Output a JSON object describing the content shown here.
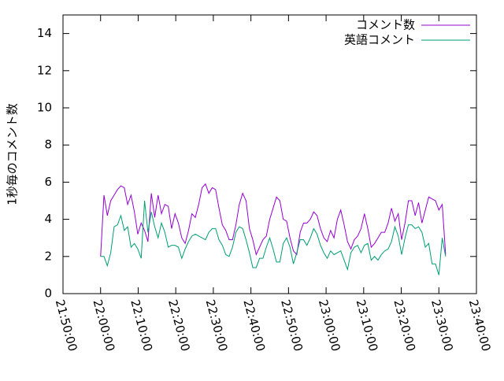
{
  "chart_data": {
    "type": "line",
    "y_label": "1秒毎のコメント数",
    "legend": "top right",
    "grid": false,
    "xlim": [
      "21:50:00",
      "23:40:00"
    ],
    "xticks": [
      "21:50:00",
      "22:00:00",
      "22:10:00",
      "22:20:00",
      "22:30:00",
      "22:40:00",
      "22:50:00",
      "23:00:00",
      "23:10:00",
      "23:20:00",
      "23:30:00",
      "23:40:00"
    ],
    "ylim": [
      0,
      15
    ],
    "yticks": [
      0,
      2,
      4,
      6,
      8,
      10,
      12,
      14
    ],
    "x": [
      "22:00:00",
      "22:00:54",
      "22:01:48",
      "22:02:42",
      "22:03:36",
      "22:04:30",
      "22:05:24",
      "22:06:18",
      "22:07:12",
      "22:08:06",
      "22:09:00",
      "22:09:54",
      "22:10:48",
      "22:11:42",
      "22:12:36",
      "22:13:30",
      "22:14:24",
      "22:15:18",
      "22:16:12",
      "22:17:06",
      "22:18:00",
      "22:18:54",
      "22:19:48",
      "22:20:42",
      "22:21:36",
      "22:22:30",
      "22:23:24",
      "22:24:18",
      "22:25:12",
      "22:26:06",
      "22:27:00",
      "22:27:54",
      "22:28:48",
      "22:29:42",
      "22:30:36",
      "22:31:30",
      "22:32:24",
      "22:33:18",
      "22:34:12",
      "22:35:06",
      "22:36:00",
      "22:36:54",
      "22:37:48",
      "22:38:42",
      "22:39:36",
      "22:40:30",
      "22:41:24",
      "22:42:18",
      "22:43:12",
      "22:44:06",
      "22:45:00",
      "22:45:54",
      "22:46:48",
      "22:47:42",
      "22:48:36",
      "22:49:30",
      "22:50:24",
      "22:51:18",
      "22:52:12",
      "22:53:06",
      "22:54:00",
      "22:54:54",
      "22:55:48",
      "22:56:42",
      "22:57:36",
      "22:58:30",
      "22:59:24",
      "23:00:18",
      "23:01:12",
      "23:02:06",
      "23:03:00",
      "23:03:54",
      "23:04:48",
      "23:05:42",
      "23:06:36",
      "23:07:30",
      "23:08:24",
      "23:09:18",
      "23:10:12",
      "23:11:06",
      "23:12:00",
      "23:12:54",
      "23:13:48",
      "23:14:42",
      "23:15:36",
      "23:16:30",
      "23:17:24",
      "23:18:18",
      "23:19:12",
      "23:20:06",
      "23:21:00",
      "23:21:54",
      "23:22:48",
      "23:23:42",
      "23:24:36",
      "23:25:30",
      "23:26:24",
      "23:27:18",
      "23:28:12",
      "23:29:06",
      "23:30:00",
      "23:30:54",
      "23:31:48"
    ],
    "series": [
      {
        "name": "コメント数",
        "color": "#9400d3",
        "values": [
          2.0,
          5.3,
          4.2,
          5.0,
          5.3,
          5.6,
          5.8,
          5.7,
          4.8,
          5.3,
          4.4,
          3.2,
          3.8,
          3.4,
          2.8,
          5.4,
          4.1,
          5.3,
          4.3,
          4.8,
          4.7,
          3.5,
          4.3,
          3.8,
          3.0,
          2.7,
          3.4,
          4.3,
          4.1,
          4.8,
          5.7,
          5.9,
          5.4,
          5.7,
          5.6,
          4.6,
          3.7,
          3.4,
          2.9,
          2.9,
          3.7,
          4.8,
          5.4,
          5.0,
          3.5,
          2.9,
          2.1,
          2.5,
          2.9,
          3.1,
          4.0,
          4.6,
          5.2,
          5.0,
          4.0,
          3.9,
          3.0,
          2.3,
          2.1,
          3.3,
          3.8,
          3.8,
          4.0,
          4.4,
          4.2,
          3.5,
          3.0,
          2.8,
          3.4,
          3.0,
          4.0,
          4.5,
          3.7,
          2.8,
          2.4,
          2.9,
          3.1,
          3.5,
          4.3,
          3.5,
          2.5,
          2.7,
          3.0,
          3.3,
          3.3,
          3.8,
          4.6,
          3.9,
          4.3,
          2.9,
          3.8,
          5.0,
          5.0,
          4.2,
          4.9,
          3.8,
          4.5,
          5.2,
          5.1,
          5.0,
          4.5,
          4.8,
          2.1
        ]
      },
      {
        "name": "英語コメント",
        "color": "#009e73",
        "values": [
          2.0,
          2.0,
          1.5,
          2.2,
          3.6,
          3.7,
          4.2,
          3.4,
          3.6,
          2.5,
          2.7,
          2.4,
          1.9,
          5.0,
          3.3,
          4.4,
          3.6,
          3.0,
          3.8,
          3.3,
          2.5,
          2.6,
          2.6,
          2.5,
          1.9,
          2.4,
          2.8,
          3.1,
          3.2,
          3.1,
          3.0,
          2.9,
          3.3,
          3.5,
          3.5,
          2.9,
          2.6,
          2.1,
          2.0,
          2.5,
          3.3,
          3.6,
          3.5,
          2.9,
          2.2,
          1.4,
          1.4,
          1.9,
          1.9,
          2.5,
          3.0,
          2.4,
          1.7,
          1.7,
          2.7,
          3.0,
          2.5,
          1.6,
          2.2,
          2.9,
          2.9,
          2.6,
          3.0,
          3.5,
          3.2,
          2.6,
          2.2,
          1.9,
          2.3,
          2.1,
          2.2,
          2.3,
          1.8,
          1.3,
          2.2,
          2.5,
          2.6,
          2.2,
          2.6,
          2.7,
          1.8,
          2.0,
          1.8,
          2.1,
          2.3,
          2.4,
          2.8,
          3.6,
          3.1,
          2.1,
          3.0,
          3.7,
          3.7,
          3.5,
          3.6,
          3.3,
          2.5,
          2.7,
          1.6,
          1.6,
          1.0,
          3.0,
          2.0
        ]
      }
    ]
  }
}
